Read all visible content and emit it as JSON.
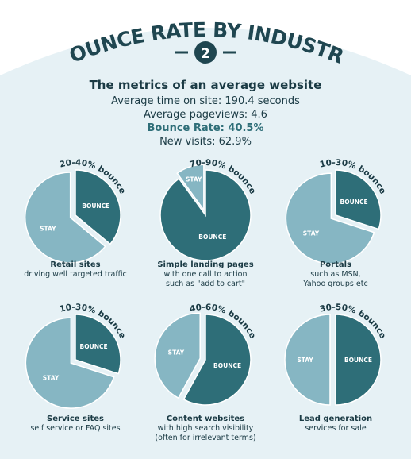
{
  "colors": {
    "background": "#e6f1f5",
    "outer_background": "#ffffff",
    "bounce": "#2e6e78",
    "stay": "#86b6c3",
    "text_dark": "#1a3a44",
    "header_text": "#1f4650"
  },
  "header": {
    "title": "BOUNCE RATE BY INDUSTRY",
    "badge_number": "2"
  },
  "intro": {
    "heading": "The metrics of an average website",
    "line1": "Average time on site: 190.4 seconds",
    "line2": "Average pageviews: 4.6",
    "line3": "Bounce Rate: 40.5%",
    "line4": "New visits: 62.9%"
  },
  "chart_data": [
    {
      "type": "pie",
      "title": "Retail sites",
      "subtitle": [
        "driving well targeted traffic"
      ],
      "range_label": "20-40% bounce",
      "slices": [
        {
          "label": "BOUNCE",
          "value": 0.36
        },
        {
          "label": "STAY",
          "value": 0.64
        }
      ]
    },
    {
      "type": "pie",
      "title": "Simple landing pages",
      "subtitle": [
        "with one call to action",
        "such as \"add to cart\""
      ],
      "range_label": "70-90% bounce",
      "slices": [
        {
          "label": "BOUNCE",
          "value": 0.9
        },
        {
          "label": "STAY",
          "value": 0.1
        }
      ]
    },
    {
      "type": "pie",
      "title": "Portals",
      "subtitle": [
        "such as MSN,",
        "Yahoo groups etc"
      ],
      "range_label": "10-30% bounce",
      "slices": [
        {
          "label": "BOUNCE",
          "value": 0.3
        },
        {
          "label": "STAY",
          "value": 0.7
        }
      ]
    },
    {
      "type": "pie",
      "title": "Service sites",
      "subtitle": [
        "self service or FAQ sites"
      ],
      "range_label": "10-30% bounce",
      "slices": [
        {
          "label": "BOUNCE",
          "value": 0.3
        },
        {
          "label": "STAY",
          "value": 0.7
        }
      ]
    },
    {
      "type": "pie",
      "title": "Content websites",
      "subtitle": [
        "with high search visibility",
        "(often for irrelevant terms)"
      ],
      "range_label": "40-60% bounce",
      "slices": [
        {
          "label": "BOUNCE",
          "value": 0.58
        },
        {
          "label": "STAY",
          "value": 0.42
        }
      ]
    },
    {
      "type": "pie",
      "title": "Lead generation",
      "subtitle": [
        "services for sale"
      ],
      "range_label": "30-50% bounce",
      "slices": [
        {
          "label": "BOUNCE",
          "value": 0.5
        },
        {
          "label": "STAY",
          "value": 0.5
        }
      ]
    }
  ]
}
